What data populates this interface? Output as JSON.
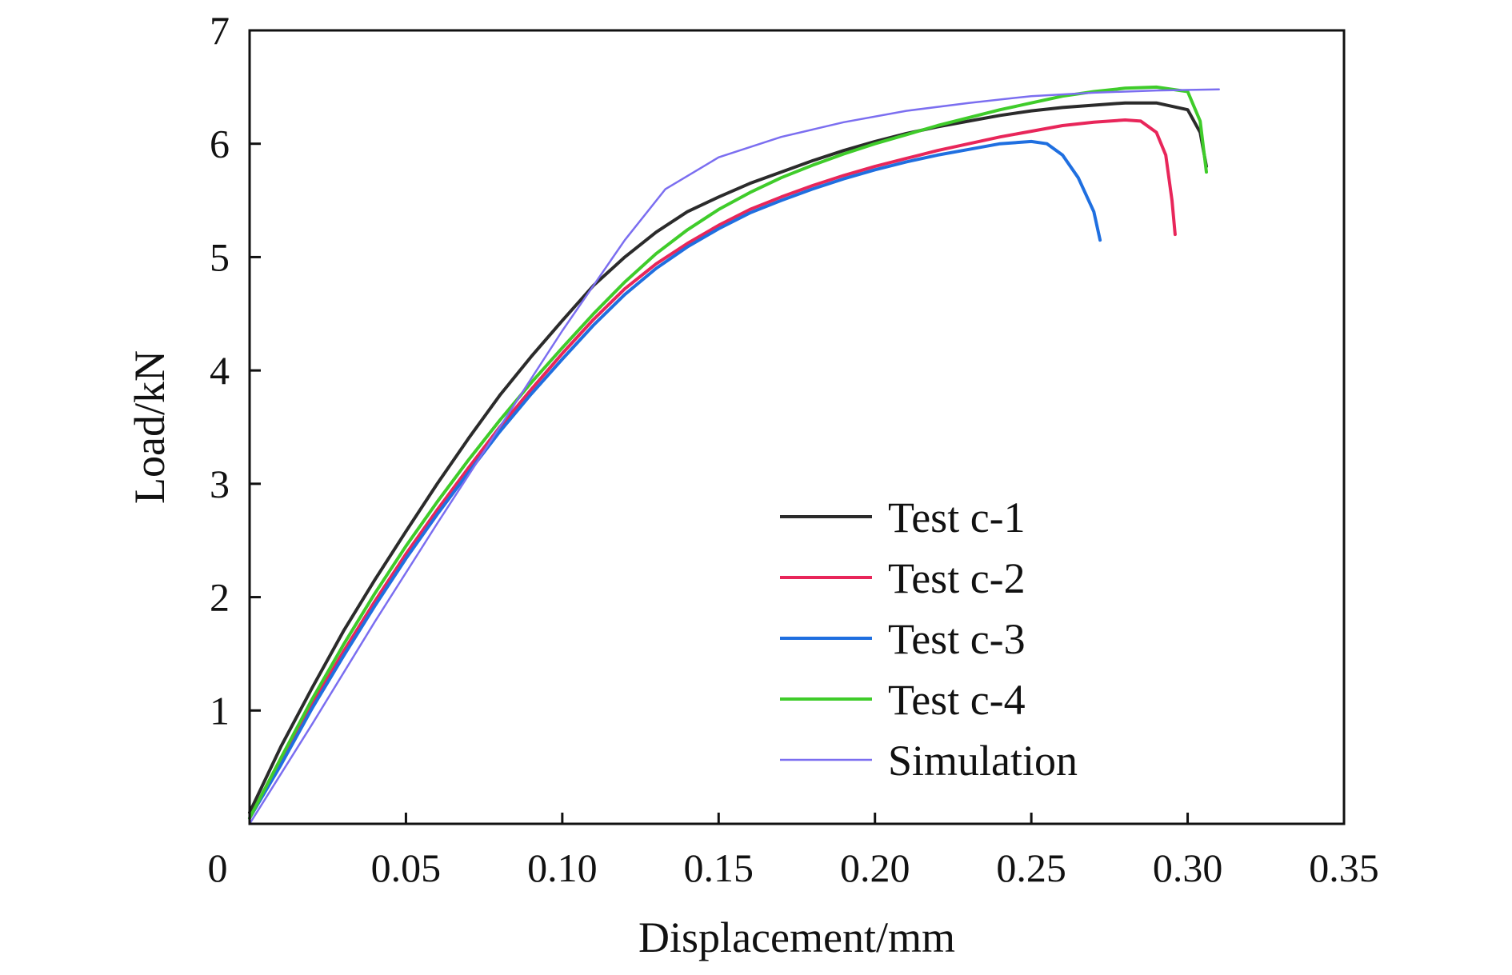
{
  "chart_data": {
    "type": "line",
    "title": "",
    "xlabel": "Displacement/mm",
    "ylabel": "Load/kN",
    "xlim": [
      0,
      0.35
    ],
    "ylim": [
      0,
      7
    ],
    "xticks": [
      {
        "value": 0,
        "label": "0"
      },
      {
        "value": 0.05,
        "label": "0.05"
      },
      {
        "value": 0.1,
        "label": "0.10"
      },
      {
        "value": 0.15,
        "label": "0.15"
      },
      {
        "value": 0.2,
        "label": "0.20"
      },
      {
        "value": 0.25,
        "label": "0.25"
      },
      {
        "value": 0.3,
        "label": "0.30"
      },
      {
        "value": 0.35,
        "label": "0.35"
      }
    ],
    "yticks": [
      {
        "value": 1,
        "label": "1"
      },
      {
        "value": 2,
        "label": "2"
      },
      {
        "value": 3,
        "label": "3"
      },
      {
        "value": 4,
        "label": "4"
      },
      {
        "value": 5,
        "label": "5"
      },
      {
        "value": 6,
        "label": "6"
      },
      {
        "value": 7,
        "label": "7"
      }
    ],
    "grid": false,
    "legend_position": "bottom-right",
    "series": [
      {
        "name": "Test c-1",
        "color": "#2b2b2b",
        "points": [
          [
            0,
            0.1
          ],
          [
            0.01,
            0.68
          ],
          [
            0.02,
            1.2
          ],
          [
            0.03,
            1.7
          ],
          [
            0.04,
            2.15
          ],
          [
            0.05,
            2.58
          ],
          [
            0.06,
            3.0
          ],
          [
            0.07,
            3.4
          ],
          [
            0.08,
            3.78
          ],
          [
            0.09,
            4.12
          ],
          [
            0.1,
            4.44
          ],
          [
            0.11,
            4.75
          ],
          [
            0.12,
            5.0
          ],
          [
            0.13,
            5.22
          ],
          [
            0.14,
            5.4
          ],
          [
            0.15,
            5.53
          ],
          [
            0.16,
            5.65
          ],
          [
            0.17,
            5.75
          ],
          [
            0.18,
            5.85
          ],
          [
            0.19,
            5.94
          ],
          [
            0.2,
            6.02
          ],
          [
            0.21,
            6.09
          ],
          [
            0.22,
            6.15
          ],
          [
            0.23,
            6.2
          ],
          [
            0.24,
            6.25
          ],
          [
            0.25,
            6.29
          ],
          [
            0.26,
            6.32
          ],
          [
            0.27,
            6.34
          ],
          [
            0.28,
            6.36
          ],
          [
            0.29,
            6.36
          ],
          [
            0.3,
            6.3
          ],
          [
            0.304,
            6.1
          ],
          [
            0.306,
            5.8
          ]
        ]
      },
      {
        "name": "Test c-2",
        "color": "#e8265a",
        "points": [
          [
            0,
            0.05
          ],
          [
            0.01,
            0.55
          ],
          [
            0.02,
            1.05
          ],
          [
            0.03,
            1.52
          ],
          [
            0.04,
            1.96
          ],
          [
            0.05,
            2.38
          ],
          [
            0.06,
            2.77
          ],
          [
            0.07,
            3.14
          ],
          [
            0.08,
            3.5
          ],
          [
            0.09,
            3.83
          ],
          [
            0.1,
            4.15
          ],
          [
            0.11,
            4.45
          ],
          [
            0.12,
            4.72
          ],
          [
            0.13,
            4.94
          ],
          [
            0.14,
            5.12
          ],
          [
            0.15,
            5.28
          ],
          [
            0.16,
            5.42
          ],
          [
            0.17,
            5.53
          ],
          [
            0.18,
            5.63
          ],
          [
            0.19,
            5.72
          ],
          [
            0.2,
            5.8
          ],
          [
            0.21,
            5.87
          ],
          [
            0.22,
            5.94
          ],
          [
            0.23,
            6.0
          ],
          [
            0.24,
            6.06
          ],
          [
            0.25,
            6.11
          ],
          [
            0.26,
            6.16
          ],
          [
            0.27,
            6.19
          ],
          [
            0.28,
            6.21
          ],
          [
            0.285,
            6.2
          ],
          [
            0.29,
            6.1
          ],
          [
            0.293,
            5.9
          ],
          [
            0.295,
            5.5
          ],
          [
            0.296,
            5.2
          ]
        ]
      },
      {
        "name": "Test c-3",
        "color": "#1f6fe0",
        "points": [
          [
            0,
            0.05
          ],
          [
            0.01,
            0.52
          ],
          [
            0.02,
            1.02
          ],
          [
            0.03,
            1.48
          ],
          [
            0.04,
            1.92
          ],
          [
            0.05,
            2.34
          ],
          [
            0.06,
            2.73
          ],
          [
            0.07,
            3.1
          ],
          [
            0.08,
            3.46
          ],
          [
            0.09,
            3.79
          ],
          [
            0.1,
            4.1
          ],
          [
            0.11,
            4.4
          ],
          [
            0.12,
            4.67
          ],
          [
            0.13,
            4.9
          ],
          [
            0.14,
            5.09
          ],
          [
            0.15,
            5.25
          ],
          [
            0.16,
            5.39
          ],
          [
            0.17,
            5.5
          ],
          [
            0.18,
            5.6
          ],
          [
            0.19,
            5.69
          ],
          [
            0.2,
            5.77
          ],
          [
            0.21,
            5.84
          ],
          [
            0.22,
            5.9
          ],
          [
            0.23,
            5.95
          ],
          [
            0.24,
            6.0
          ],
          [
            0.25,
            6.02
          ],
          [
            0.255,
            6.0
          ],
          [
            0.26,
            5.9
          ],
          [
            0.265,
            5.7
          ],
          [
            0.27,
            5.4
          ],
          [
            0.272,
            5.15
          ]
        ]
      },
      {
        "name": "Test c-4",
        "color": "#3fcc2a",
        "points": [
          [
            0,
            0.05
          ],
          [
            0.01,
            0.58
          ],
          [
            0.02,
            1.1
          ],
          [
            0.03,
            1.58
          ],
          [
            0.04,
            2.03
          ],
          [
            0.05,
            2.45
          ],
          [
            0.06,
            2.84
          ],
          [
            0.07,
            3.21
          ],
          [
            0.08,
            3.56
          ],
          [
            0.09,
            3.89
          ],
          [
            0.1,
            4.2
          ],
          [
            0.11,
            4.5
          ],
          [
            0.12,
            4.78
          ],
          [
            0.13,
            5.03
          ],
          [
            0.14,
            5.24
          ],
          [
            0.15,
            5.42
          ],
          [
            0.16,
            5.57
          ],
          [
            0.17,
            5.7
          ],
          [
            0.18,
            5.81
          ],
          [
            0.19,
            5.91
          ],
          [
            0.2,
            6.0
          ],
          [
            0.21,
            6.08
          ],
          [
            0.22,
            6.16
          ],
          [
            0.23,
            6.23
          ],
          [
            0.24,
            6.3
          ],
          [
            0.25,
            6.36
          ],
          [
            0.26,
            6.42
          ],
          [
            0.27,
            6.46
          ],
          [
            0.28,
            6.49
          ],
          [
            0.29,
            6.5
          ],
          [
            0.3,
            6.46
          ],
          [
            0.304,
            6.2
          ],
          [
            0.306,
            5.75
          ]
        ]
      },
      {
        "name": "Simulation",
        "color": "#7b6ef0",
        "points": [
          [
            0,
            0
          ],
          [
            0.02,
            0.88
          ],
          [
            0.04,
            1.78
          ],
          [
            0.06,
            2.65
          ],
          [
            0.08,
            3.5
          ],
          [
            0.1,
            4.35
          ],
          [
            0.12,
            5.15
          ],
          [
            0.133,
            5.6
          ],
          [
            0.15,
            5.88
          ],
          [
            0.17,
            6.06
          ],
          [
            0.19,
            6.19
          ],
          [
            0.21,
            6.29
          ],
          [
            0.23,
            6.36
          ],
          [
            0.25,
            6.42
          ],
          [
            0.27,
            6.45
          ],
          [
            0.29,
            6.47
          ],
          [
            0.31,
            6.48
          ]
        ]
      }
    ]
  }
}
